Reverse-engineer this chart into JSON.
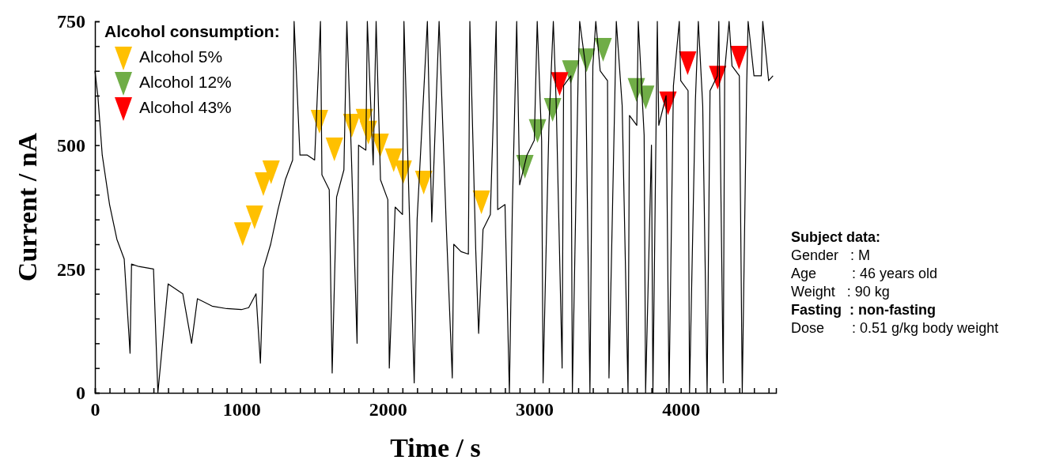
{
  "chart_data": {
    "type": "line",
    "xlabel": "Time / s",
    "ylabel": "Current / nA",
    "xlim": [
      0,
      4650
    ],
    "ylim": [
      0,
      750
    ],
    "xticks": [
      0,
      {
        "value": 100,
        "label": null
      },
      {
        "value": 200,
        "label": null
      },
      {
        "value": 300,
        "label": null
      },
      {
        "value": 400,
        "label": null
      },
      {
        "value": 500,
        "label": null
      },
      {
        "value": 600,
        "label": null
      },
      {
        "value": 700,
        "label": null
      },
      {
        "value": 800,
        "label": null
      },
      {
        "value": 900,
        "label": null
      },
      1000,
      {
        "value": 1100,
        "label": null
      },
      {
        "value": 1200,
        "label": null
      },
      {
        "value": 1300,
        "label": null
      },
      {
        "value": 1400,
        "label": null
      },
      {
        "value": 1500,
        "label": null
      },
      {
        "value": 1600,
        "label": null
      },
      {
        "value": 1700,
        "label": null
      },
      {
        "value": 1800,
        "label": null
      },
      {
        "value": 1900,
        "label": null
      },
      2000,
      {
        "value": 2100,
        "label": null
      },
      {
        "value": 2200,
        "label": null
      },
      {
        "value": 2300,
        "label": null
      },
      {
        "value": 2400,
        "label": null
      },
      {
        "value": 2500,
        "label": null
      },
      {
        "value": 2600,
        "label": null
      },
      {
        "value": 2700,
        "label": null
      },
      {
        "value": 2800,
        "label": null
      },
      {
        "value": 2900,
        "label": null
      },
      3000,
      {
        "value": 3100,
        "label": null
      },
      {
        "value": 3200,
        "label": null
      },
      {
        "value": 3300,
        "label": null
      },
      {
        "value": 3400,
        "label": null
      },
      {
        "value": 3500,
        "label": null
      },
      {
        "value": 3600,
        "label": null
      },
      {
        "value": 3700,
        "label": null
      },
      {
        "value": 3800,
        "label": null
      },
      {
        "value": 3900,
        "label": null
      },
      4000,
      {
        "value": 4100,
        "label": null
      },
      {
        "value": 4200,
        "label": null
      },
      {
        "value": 4300,
        "label": null
      },
      {
        "value": 4400,
        "label": null
      },
      {
        "value": 4500,
        "label": null
      },
      {
        "value": 4600,
        "label": null
      }
    ],
    "yticks": [
      0,
      {
        "value": 50,
        "label": null
      },
      {
        "value": 100,
        "label": null
      },
      {
        "value": 150,
        "label": null
      },
      {
        "value": 200,
        "label": null
      },
      250,
      {
        "value": 300,
        "label": null
      },
      {
        "value": 350,
        "label": null
      },
      {
        "value": 400,
        "label": null
      },
      {
        "value": 450,
        "label": null
      },
      500,
      {
        "value": 550,
        "label": null
      },
      {
        "value": 600,
        "label": null
      },
      {
        "value": 650,
        "label": null
      },
      {
        "value": 700,
        "label": null
      },
      750
    ],
    "grid": false,
    "legend": "top left",
    "legend_title": "Alcohol consumption:",
    "series": [
      {
        "color": "#000000",
        "x": [
          0,
          20,
          50,
          100,
          150,
          200,
          240,
          250,
          300,
          400,
          430,
          500,
          600,
          660,
          700,
          800,
          900,
          1000,
          1050,
          1100,
          1130,
          1150,
          1200,
          1250,
          1300,
          1350,
          1360,
          1400,
          1450,
          1500,
          1540,
          1550,
          1600,
          1620,
          1650,
          1700,
          1720,
          1750,
          1790,
          1800,
          1850,
          1860,
          1900,
          1920,
          1950,
          2000,
          2010,
          2050,
          2100,
          2110,
          2180,
          2200,
          2270,
          2300,
          2350,
          2400,
          2440,
          2450,
          2500,
          2550,
          2560,
          2600,
          2620,
          2650,
          2700,
          2740,
          2750,
          2800,
          2830,
          2850,
          2880,
          2900,
          2950,
          3000,
          3020,
          3050,
          3060,
          3100,
          3130,
          3150,
          3190,
          3200,
          3250,
          3260,
          3300,
          3310,
          3350,
          3380,
          3400,
          3420,
          3450,
          3500,
          3510,
          3550,
          3560,
          3600,
          3640,
          3650,
          3700,
          3710,
          3750,
          3760,
          3800,
          3810,
          3840,
          3850,
          3900,
          3920,
          3950,
          3990,
          4000,
          4050,
          4060,
          4100,
          4120,
          4150,
          4180,
          4200,
          4250,
          4260,
          4290,
          4300,
          4330,
          4350,
          4400,
          4420,
          4450,
          4460,
          4500,
          4550,
          4560,
          4600,
          4630
        ],
        "values": [
          650,
          600,
          480,
          380,
          310,
          270,
          80,
          260,
          255,
          250,
          0,
          220,
          200,
          100,
          190,
          175,
          170,
          168,
          172,
          200,
          60,
          250,
          300,
          370,
          430,
          470,
          750,
          480,
          480,
          470,
          750,
          440,
          410,
          40,
          395,
          450,
          750,
          490,
          100,
          500,
          490,
          750,
          460,
          750,
          430,
          390,
          50,
          375,
          360,
          750,
          20,
          350,
          750,
          345,
          750,
          330,
          30,
          300,
          285,
          280,
          750,
          290,
          120,
          330,
          360,
          750,
          370,
          380,
          0,
          370,
          750,
          420,
          480,
          510,
          750,
          510,
          20,
          540,
          750,
          580,
          50,
          620,
          640,
          0,
          650,
          750,
          660,
          0,
          660,
          750,
          650,
          630,
          30,
          600,
          750,
          580,
          0,
          560,
          540,
          750,
          520,
          0,
          500,
          0,
          750,
          540,
          600,
          0,
          620,
          750,
          630,
          610,
          0,
          590,
          750,
          580,
          0,
          610,
          640,
          750,
          20,
          650,
          750,
          660,
          640,
          0,
          620,
          750,
          640,
          640,
          750,
          630,
          640
        ]
      },
      {
        "type": "scatter",
        "name": "Alcohol 5%",
        "color": "#ffc000",
        "marker": "triangle",
        "x": [
          1009,
          1090,
          1150,
          1203,
          1533,
          1635,
          1754,
          1840,
          1867,
          1948,
          2040,
          2105,
          2245,
          2639
        ],
        "values": [
          322,
          356,
          423,
          447,
          549,
          493,
          541,
          551,
          527,
          501,
          471,
          447,
          426,
          386
        ]
      },
      {
        "type": "scatter",
        "name": "Alcohol 12%",
        "color": "#70ad47",
        "marker": "triangle",
        "x": [
          2936,
          3022,
          3125,
          3249,
          3357,
          3470,
          3697,
          3761
        ],
        "values": [
          458,
          530,
          573,
          649,
          673,
          694,
          613,
          598
        ]
      },
      {
        "type": "scatter",
        "name": "Alcohol 43%",
        "color": "#ff0000",
        "marker": "triangle",
        "x": [
          3173,
          3913,
          4047,
          4252,
          4398
        ],
        "values": [
          625,
          586,
          667,
          638,
          678
        ]
      }
    ],
    "annotations": [
      "Subject data:",
      "Gender   : M",
      "Age         : 46 years old",
      "Weight   : 90 kg",
      "Fasting  : non-fasting",
      "Dose       : 0.51 g/kg body weight"
    ]
  }
}
